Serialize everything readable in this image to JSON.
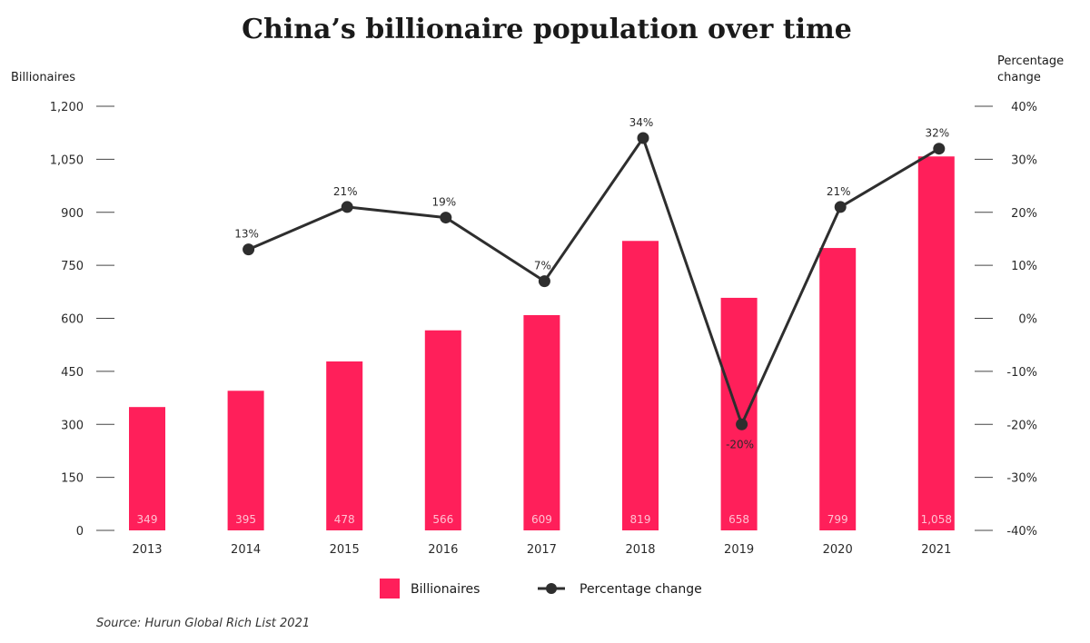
{
  "chart_data": {
    "type": "bar",
    "title": "China’s billionaire population over time",
    "categories": [
      "2013",
      "2014",
      "2015",
      "2016",
      "2017",
      "2018",
      "2019",
      "2020",
      "2021"
    ],
    "series": [
      {
        "name": "Billionaires",
        "type": "bar",
        "axis": "left",
        "values": [
          349,
          395,
          478,
          566,
          609,
          819,
          658,
          799,
          1058
        ],
        "labels": [
          "349",
          "395",
          "478",
          "566",
          "609",
          "819",
          "658",
          "799",
          "1,058"
        ],
        "color": "#ff1f5a"
      },
      {
        "name": "Percentage change",
        "type": "line",
        "axis": "right",
        "values": [
          null,
          13,
          21,
          19,
          7,
          34,
          -20,
          21,
          32
        ],
        "labels": [
          "",
          "13%",
          "21%",
          "19%",
          "7%",
          "34%",
          "-20%",
          "21%",
          "32%"
        ],
        "color": "#2e2e2e"
      }
    ],
    "y_left": {
      "label": "Billionaires",
      "ylim": [
        0,
        1200
      ],
      "ticks": [
        0,
        150,
        300,
        450,
        600,
        750,
        900,
        1050,
        1200
      ],
      "tick_labels": [
        "0",
        "150",
        "300",
        "450",
        "600",
        "750",
        "900",
        "1,050",
        "1,200"
      ]
    },
    "y_right": {
      "label_lines": [
        "Percentage",
        "change"
      ],
      "ylim": [
        -40,
        40
      ],
      "ticks": [
        -40,
        -30,
        -20,
        -10,
        0,
        10,
        20,
        30,
        40
      ],
      "tick_labels": [
        "-40%",
        "-30%",
        "-20%",
        "-10%",
        "0%",
        "10%",
        "20%",
        "30%",
        "40%"
      ]
    },
    "legend": {
      "placement": "bottom-center",
      "items": [
        {
          "label": "Billionaires",
          "marker": "square"
        },
        {
          "label": "Percentage change",
          "marker": "line-dot"
        }
      ]
    },
    "grid": false
  },
  "source": "Source: Hurun Global Rich List 2021"
}
